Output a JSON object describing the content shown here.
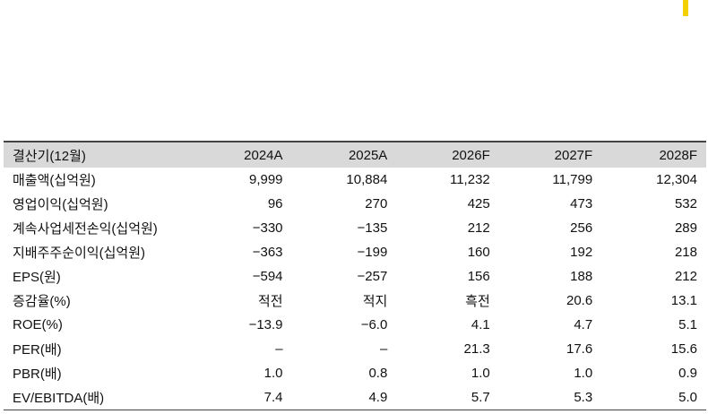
{
  "table": {
    "header": [
      "결산기(12월)",
      "2024A",
      "2025A",
      "2026F",
      "2027F",
      "2028F"
    ],
    "rows": [
      [
        "매출액(십억원)",
        "9,999",
        "10,884",
        "11,232",
        "11,799",
        "12,304"
      ],
      [
        "영업이익(십억원)",
        "96",
        "270",
        "425",
        "473",
        "532"
      ],
      [
        "계속사업세전손익(십억원)",
        "−330",
        "−135",
        "212",
        "256",
        "289"
      ],
      [
        "지배주주순이익(십억원)",
        "−363",
        "−199",
        "160",
        "192",
        "218"
      ],
      [
        "EPS(원)",
        "−594",
        "−257",
        "156",
        "188",
        "212"
      ],
      [
        "증감율(%)",
        "적전",
        "적지",
        "흑전",
        "20.6",
        "13.1"
      ],
      [
        "ROE(%)",
        "−13.9",
        "−6.0",
        "4.1",
        "4.7",
        "5.1"
      ],
      [
        "PER(배)",
        "–",
        "–",
        "21.3",
        "17.6",
        "15.6"
      ],
      [
        "PBR(배)",
        "1.0",
        "0.8",
        "1.0",
        "1.0",
        "0.9"
      ],
      [
        "EV/EBITDA(배)",
        "7.4",
        "4.9",
        "5.7",
        "5.3",
        "5.0"
      ]
    ]
  }
}
